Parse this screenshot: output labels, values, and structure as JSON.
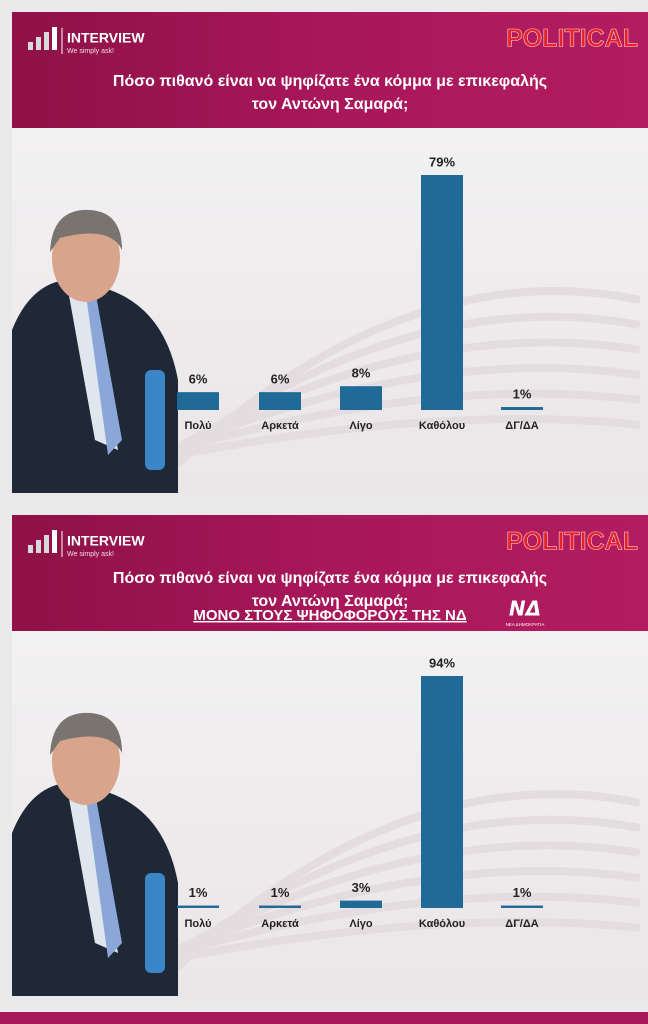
{
  "chart_data": [
    {
      "type": "bar",
      "brand": "INTERVIEW",
      "tagline": "We simply ask!",
      "label": "POLITICAL",
      "title": [
        "Πόσο πιθανό είναι να ψηφίζατε ένα κόμμα με επικεφαλής",
        "τον Αντώνη Σαμαρά;"
      ],
      "categories": [
        "Πολύ",
        "Αρκετά",
        "Λίγο",
        "Καθόλου",
        "ΔΓ/ΔΑ"
      ],
      "values": [
        6,
        6,
        8,
        79,
        1
      ],
      "value_labels": [
        "6%",
        "6%",
        "8%",
        "79%",
        "1%"
      ],
      "color": "#1f6a96"
    },
    {
      "type": "bar",
      "brand": "INTERVIEW",
      "tagline": "We simply ask!",
      "label": "POLITICAL",
      "title": [
        "Πόσο πιθανό είναι να ψηφίζατε ένα κόμμα με επικεφαλής",
        "τον Αντώνη Σαμαρά;"
      ],
      "subtitle": "ΜΟΝΟ ΣΤΟΥΣ ΨΗΦΟΦΟΡΟΥΣ ΤΗΣ ΝΔ",
      "subtitle_logo": "ΝΕΑ ΔΗΜΟΚΡΑΤΙΑ",
      "categories": [
        "Πολύ",
        "Αρκετά",
        "Λίγο",
        "Καθόλου",
        "ΔΓ/ΔΑ"
      ],
      "values": [
        1,
        1,
        3,
        94,
        1
      ],
      "value_labels": [
        "1%",
        "1%",
        "3%",
        "94%",
        "1%"
      ],
      "color": "#1f6a96"
    }
  ]
}
